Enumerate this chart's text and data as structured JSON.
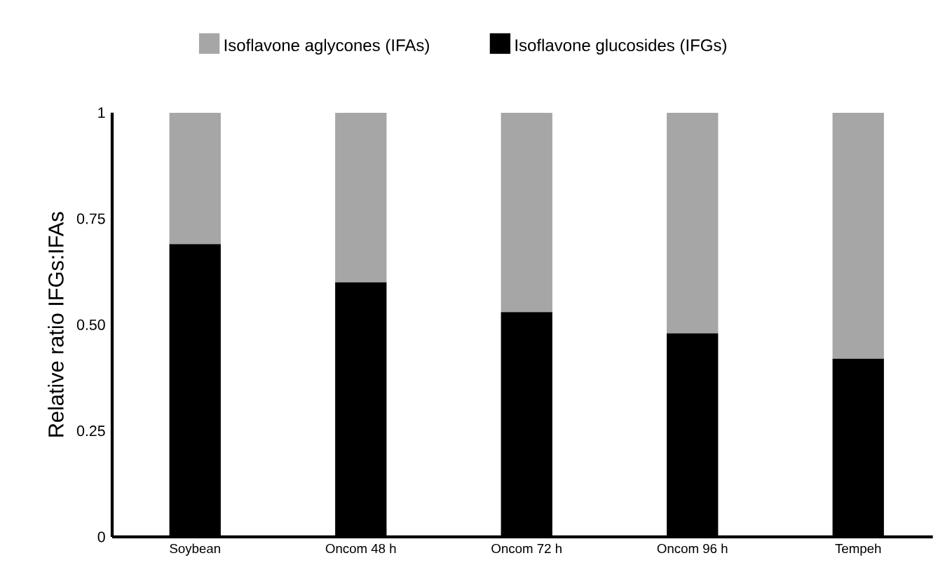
{
  "chart_data": {
    "type": "bar",
    "stacked": true,
    "ylabel": "Relative ratio IFGs:IFAs",
    "categories": [
      "Soybean",
      "Oncom 48 h",
      "Oncom 72 h",
      "Oncom 96 h",
      "Tempeh"
    ],
    "series": [
      {
        "name": "Isoflavone glucosides (IFGs)",
        "color": "#000000",
        "values": [
          0.69,
          0.6,
          0.53,
          0.48,
          0.42
        ]
      },
      {
        "name": "Isoflavone aglycones (IFAs)",
        "color": "#a6a6a6",
        "values": [
          0.31,
          0.4,
          0.47,
          0.52,
          0.58
        ]
      }
    ],
    "ylim": [
      0,
      1
    ],
    "yticks": [
      0,
      0.25,
      {
        "value": 0.5,
        "label": "0.50"
      },
      0.75,
      1
    ],
    "legend": "top",
    "grid": false
  }
}
